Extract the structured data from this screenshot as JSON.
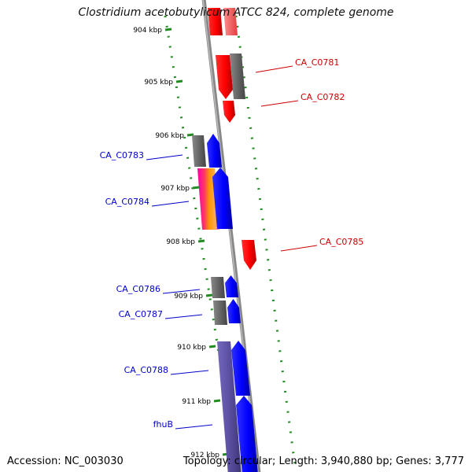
{
  "title": "Clostridium acetobutylicum ATCC 824, complete genome",
  "footer": {
    "accession": "Accession: NC_003030",
    "summary": "Topology: circular; Length: 3,940,880 bp; Genes: 3,777"
  },
  "ticks": [
    "904 kbp",
    "905 kbp",
    "906 kbp",
    "907 kbp",
    "908 kbp",
    "909 kbp",
    "910 kbp",
    "911 kbp",
    "912 kbp"
  ],
  "genes": [
    {
      "label": "CA_C0781",
      "strand": "reverse"
    },
    {
      "label": "CA_C0782",
      "strand": "reverse"
    },
    {
      "label": "CA_C0783",
      "strand": "forward"
    },
    {
      "label": "CA_C0784",
      "strand": "forward"
    },
    {
      "label": "CA_C0785",
      "strand": "reverse"
    },
    {
      "label": "CA_C0786",
      "strand": "forward"
    },
    {
      "label": "CA_C0787",
      "strand": "forward"
    },
    {
      "label": "CA_C0788",
      "strand": "forward"
    },
    {
      "label": "fhuB",
      "strand": "forward"
    }
  ],
  "colors": {
    "forward": "#0000ff",
    "reverse": "#ff0000",
    "forward_label": "#0000cc",
    "reverse_label": "#cc0000",
    "tick": "#228b22",
    "backbone": "#888888",
    "feature_gray": "#666666",
    "purple": "#5a4fa0"
  }
}
